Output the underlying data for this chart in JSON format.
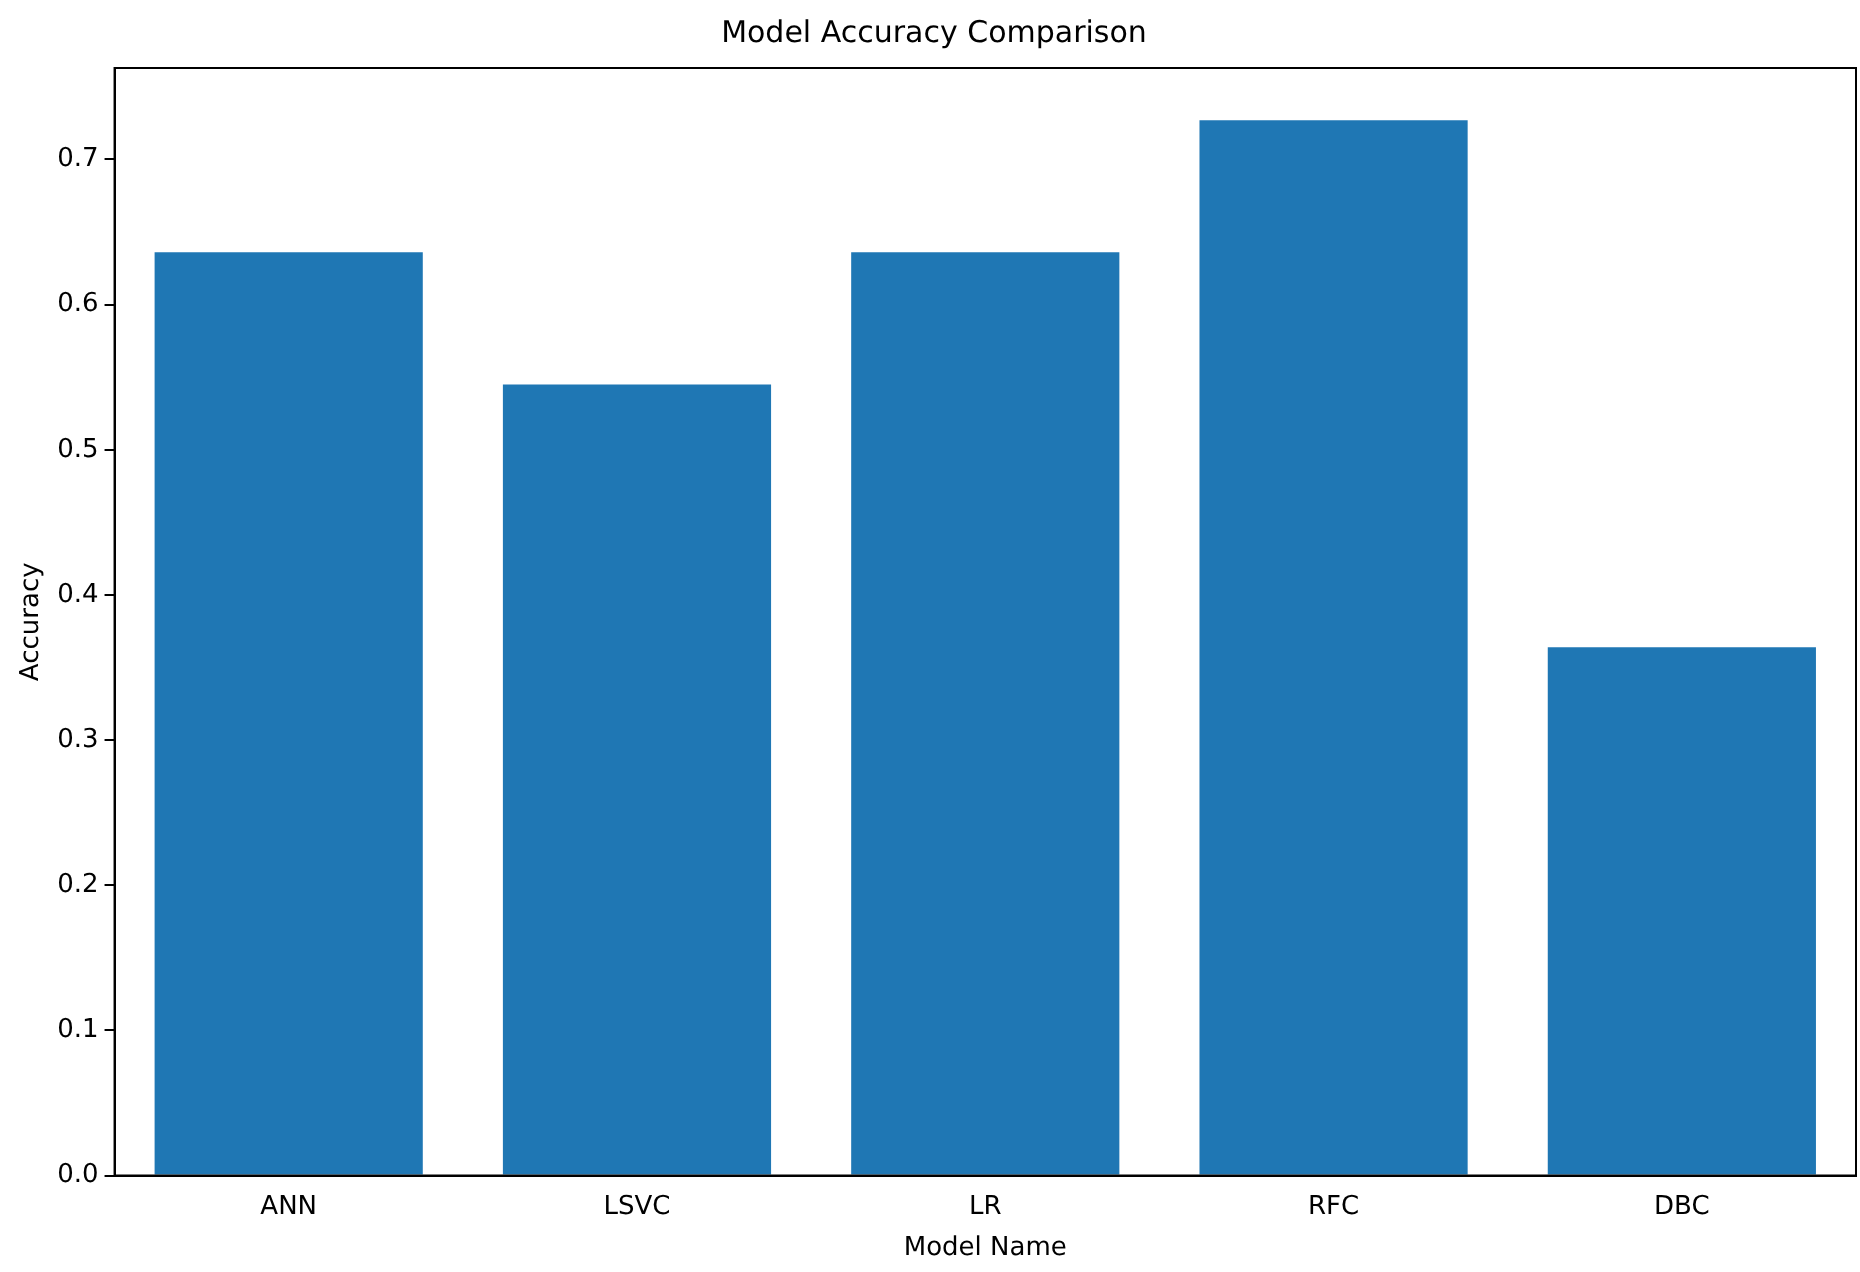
{
  "chart_data": {
    "type": "bar",
    "title": "Model Accuracy Comparison",
    "xlabel": "Model Name",
    "ylabel": "Accuracy",
    "categories": [
      "ANN",
      "LSVC",
      "LR",
      "RFC",
      "DBC"
    ],
    "values": [
      0.636,
      0.545,
      0.636,
      0.727,
      0.364
    ],
    "color": "#1f77b4",
    "ylim": [
      0,
      0.763
    ],
    "yticks": [
      {
        "value": 0,
        "label": "0.0"
      },
      0.1,
      0.2,
      0.3,
      0.4,
      0.5,
      0.6,
      0.7
    ],
    "grid": false,
    "legend": false
  }
}
